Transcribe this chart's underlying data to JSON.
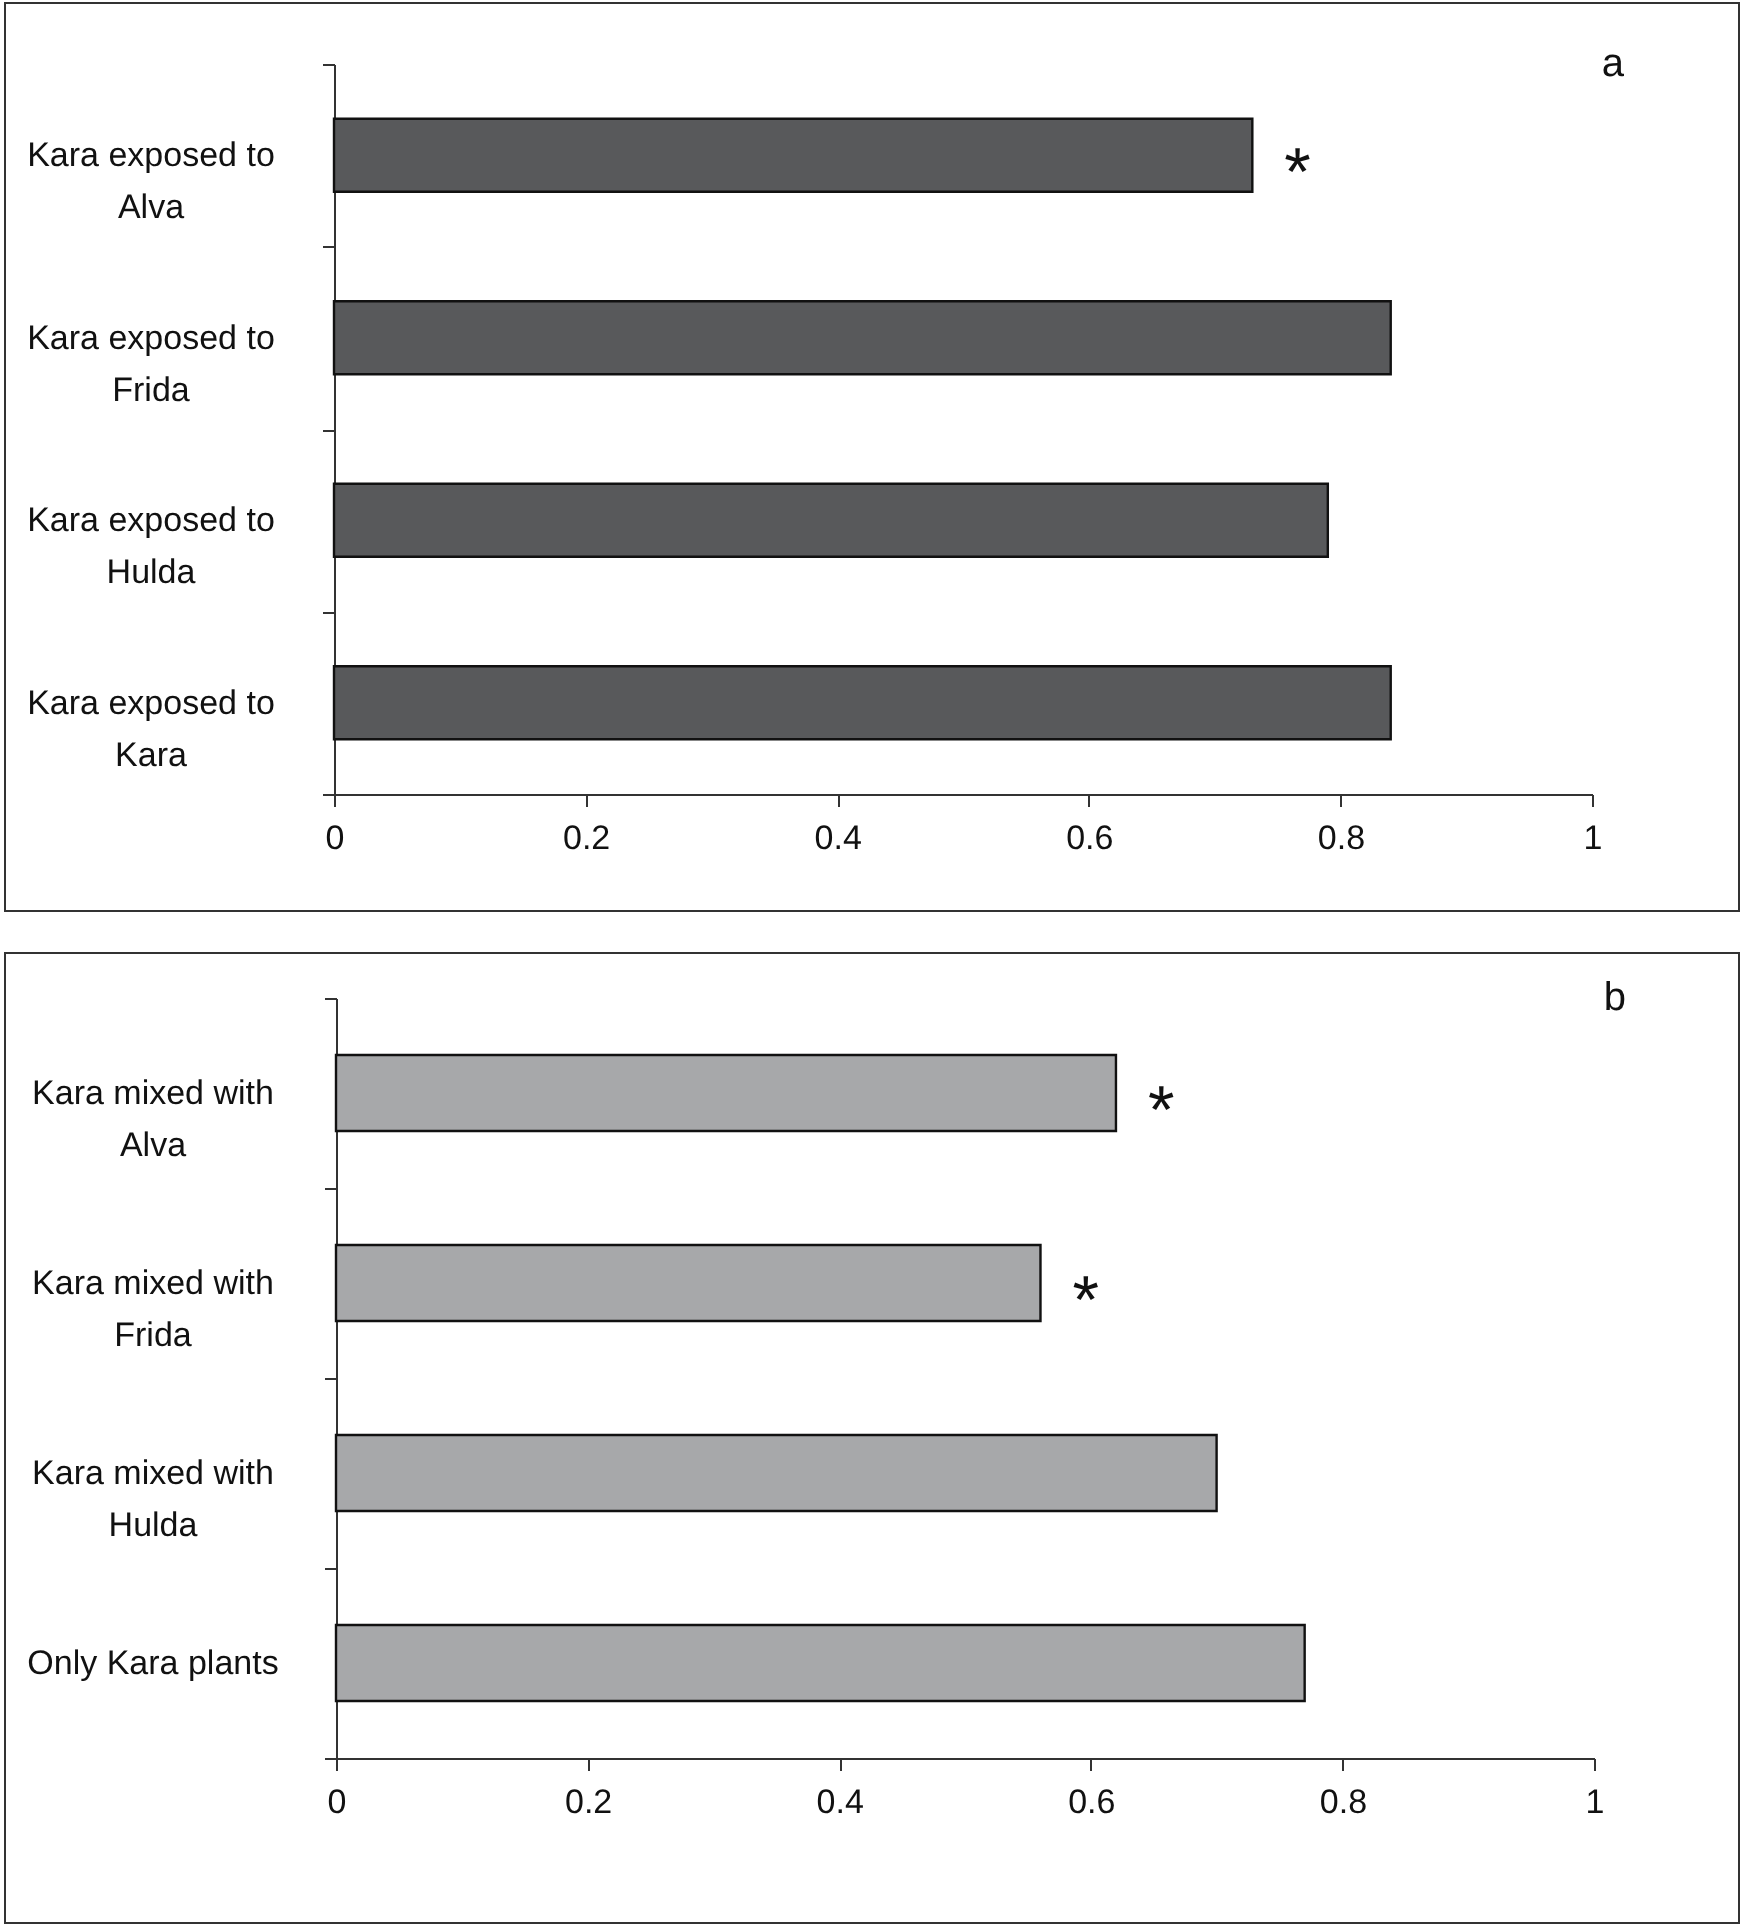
{
  "chart_data": [
    {
      "type": "bar",
      "orientation": "horizontal",
      "categories": [
        "Kara exposed to Alva",
        "Kara exposed to Frida",
        "Kara exposed to Hulda",
        "Kara exposed to Kara"
      ],
      "values": [
        0.73,
        0.84,
        0.79,
        0.84
      ],
      "color": "#58595b",
      "xlim": [
        0,
        1
      ],
      "xticks": [
        0,
        0.2,
        0.4,
        0.6,
        0.8,
        1
      ],
      "grid": false,
      "annotations": [
        "a",
        {
          "text": "*",
          "x": 0.73,
          "y": "Kara exposed to Alva"
        }
      ]
    },
    {
      "type": "bar",
      "orientation": "horizontal",
      "categories": [
        "Kara mixed with Alva",
        "Kara mixed with Frida",
        "Kara mixed with Hulda",
        "Only Kara plants"
      ],
      "values": [
        0.62,
        0.56,
        0.7,
        0.77
      ],
      "color": "#a7a8aa",
      "xlim": [
        0,
        1
      ],
      "xticks": [
        0,
        0.2,
        0.4,
        0.6,
        0.8,
        1
      ],
      "grid": false,
      "annotations": [
        "b",
        {
          "text": "*",
          "x": 0.62,
          "y": "Kara mixed with Alva"
        },
        {
          "text": "*",
          "x": 0.56,
          "y": "Kara mixed with Frida"
        }
      ]
    }
  ]
}
